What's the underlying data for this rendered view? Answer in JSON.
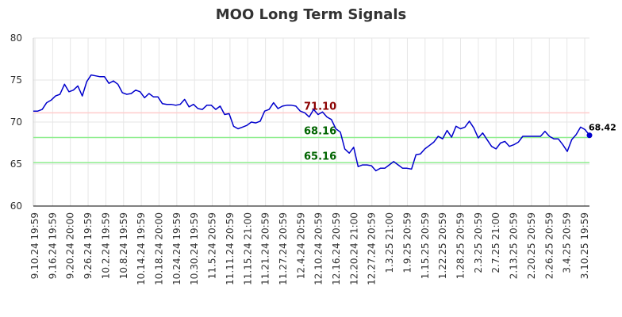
{
  "chart_data": {
    "type": "line",
    "title": "MOO Long Term Signals",
    "xlabel": "",
    "ylabel": "",
    "ylim": [
      60,
      80
    ],
    "yticks": [
      60,
      65,
      70,
      75,
      80
    ],
    "grid": true,
    "x_tick_labels": [
      "9.10.24 19:59",
      "9.16.24 19:59",
      "9.20.24 20:00",
      "9.26.24 19:59",
      "10.2.24 19:59",
      "10.8.24 19:59",
      "10.14.24 19:59",
      "10.18.24 20:00",
      "10.24.24 19:59",
      "10.30.24 19:59",
      "11.5.24 20:59",
      "11.11.24 20:59",
      "11.15.24 21:00",
      "11.21.24 20:59",
      "11.27.24 20:59",
      "12.4.24 20:59",
      "12.10.24 20:59",
      "12.16.24 20:59",
      "12.20.24 21:00",
      "12.27.24 20:59",
      "1.3.25 21:00",
      "1.9.25 20:59",
      "1.15.25 20:59",
      "1.22.25 20:59",
      "1.28.25 20:59",
      "2.3.25 20:59",
      "2.7.25 21:00",
      "2.13.25 20:59",
      "2.20.25 20:59",
      "2.26.25 20:59",
      "3.4.25 20:59",
      "3.10.25 19:59"
    ],
    "series": [
      {
        "color": "#0000cc",
        "values": [
          71.3,
          71.3,
          71.5,
          72.3,
          72.6,
          73.1,
          73.3,
          74.5,
          73.6,
          73.8,
          74.3,
          73.1,
          74.8,
          75.6,
          75.5,
          75.4,
          75.4,
          74.6,
          74.9,
          74.5,
          73.5,
          73.3,
          73.4,
          73.8,
          73.6,
          72.9,
          73.4,
          73.0,
          73.0,
          72.2,
          72.1,
          72.1,
          72.0,
          72.1,
          72.7,
          71.8,
          72.1,
          71.6,
          71.5,
          72.0,
          72.0,
          71.5,
          71.9,
          70.9,
          71.0,
          69.5,
          69.2,
          69.4,
          69.6,
          70.0,
          69.9,
          70.1,
          71.3,
          71.5,
          72.3,
          71.6,
          71.9,
          72.0,
          72.0,
          71.9,
          71.3,
          71.1,
          70.6,
          71.5,
          70.9,
          71.2,
          70.6,
          70.3,
          69.2,
          68.8,
          66.8,
          66.3,
          67.0,
          64.7,
          64.9,
          64.9,
          64.8,
          64.2,
          64.5,
          64.5,
          64.9,
          65.3,
          64.9,
          64.5,
          64.5,
          64.4,
          66.1,
          66.2,
          66.8,
          67.2,
          67.6,
          68.3,
          68.0,
          69.0,
          68.2,
          69.5,
          69.2,
          69.4,
          70.1,
          69.3,
          68.1,
          68.7,
          67.9,
          67.1,
          66.8,
          67.5,
          67.7,
          67.1,
          67.3,
          67.6,
          68.3,
          68.3,
          68.3,
          68.3,
          68.3,
          68.9,
          68.3,
          68.0,
          68.0,
          67.3,
          66.5,
          67.9,
          68.5,
          69.4,
          69.1,
          68.42
        ]
      }
    ],
    "levels": [
      {
        "value": 71.1,
        "label": "71.10",
        "line_color": "#ffcccc",
        "text_color": "#8b0000"
      },
      {
        "value": 68.16,
        "label": "68.16",
        "line_color": "#90ee90",
        "text_color": "#006400"
      },
      {
        "value": 65.16,
        "label": "65.16",
        "line_color": "#90ee90",
        "text_color": "#006400"
      }
    ],
    "last_value": {
      "value": 68.42,
      "label": "68.42",
      "color": "#0000cc"
    }
  }
}
